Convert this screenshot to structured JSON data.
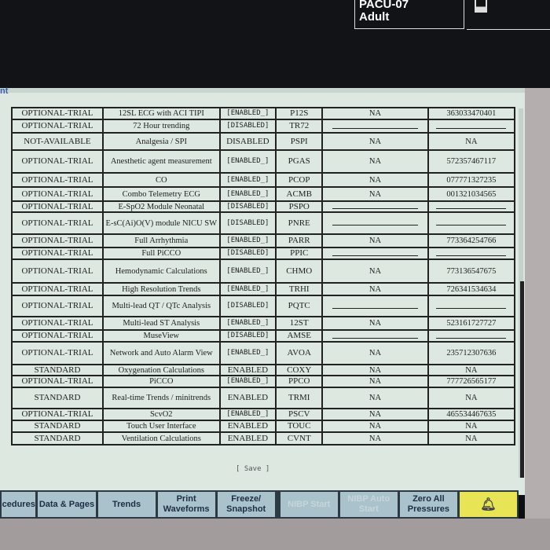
{
  "header": {
    "bed": "PACU-07",
    "patient_type": "Adult"
  },
  "side_text": "nt",
  "table": {
    "rows": [
      [
        "OPTIONAL-TRIAL",
        "12SL ECG with ACI TIPI",
        "[ENABLED_]",
        "P12S",
        "NA",
        "363033470401"
      ],
      [
        "OPTIONAL-TRIAL",
        "72 Hour trending",
        "[DISABLED]",
        "TR72",
        "",
        ""
      ],
      [
        "NOT-AVAILABLE",
        "Analgesia / SPI",
        "DISABLED",
        "PSPI",
        "NA",
        "NA"
      ],
      [
        "OPTIONAL-TRIAL",
        "Anesthetic agent measurement",
        "[ENABLED_]",
        "PGAS",
        "NA",
        "572357467117"
      ],
      [
        "OPTIONAL-TRIAL",
        "CO",
        "[ENABLED_]",
        "PCOP",
        "NA",
        "077771327235"
      ],
      [
        "OPTIONAL-TRIAL",
        "Combo Telemetry ECG",
        "[ENABLED_]",
        "ACMB",
        "NA",
        "001321034565"
      ],
      [
        "OPTIONAL-TRIAL",
        "E-SpO2 Module Neonatal",
        "[DISABLED]",
        "PSPO",
        "",
        ""
      ],
      [
        "OPTIONAL-TRIAL",
        "E-sC(Ai)O(V) module NICU SW",
        "[DISABLED]",
        "PNRE",
        "",
        ""
      ],
      [
        "OPTIONAL-TRIAL",
        "Full Arrhythmia",
        "[ENABLED_]",
        "PARR",
        "NA",
        "773364254766"
      ],
      [
        "OPTIONAL-TRIAL",
        "Full PiCCO",
        "[DISABLED]",
        "PPIC",
        "",
        ""
      ],
      [
        "OPTIONAL-TRIAL",
        "Hemodynamic Calculations",
        "[ENABLED_]",
        "CHMO",
        "NA",
        "773136547675"
      ],
      [
        "OPTIONAL-TRIAL",
        "High Resolution Trends",
        "[ENABLED_]",
        "TRHI",
        "NA",
        "726341534634"
      ],
      [
        "OPTIONAL-TRIAL",
        "Multi-lead QT / QTc Analysis",
        "[DISABLED]",
        "PQTC",
        "",
        ""
      ],
      [
        "OPTIONAL-TRIAL",
        "Multi-lead ST Analysis",
        "[ENABLED_]",
        "12ST",
        "NA",
        "523161727727"
      ],
      [
        "OPTIONAL-TRIAL",
        "MuseView",
        "[DISABLED]",
        "AMSE",
        "",
        ""
      ],
      [
        "OPTIONAL-TRIAL",
        "Network and Auto Alarm View",
        "[ENABLED_]",
        "AVOA",
        "NA",
        "235712307636"
      ],
      [
        "STANDARD",
        "Oxygenation Calculations",
        "ENABLED",
        "COXY",
        "NA",
        "NA"
      ],
      [
        "OPTIONAL-TRIAL",
        "PiCCO",
        "[ENABLED_]",
        "PPCO",
        "NA",
        "777726565177"
      ],
      [
        "STANDARD",
        "Real-time Trends / minitrends",
        "ENABLED",
        "TRMI",
        "NA",
        "NA"
      ],
      [
        "OPTIONAL-TRIAL",
        "ScvO2",
        "[ENABLED_]",
        "PSCV",
        "NA",
        "465534467635"
      ],
      [
        "STANDARD",
        "Touch User Interface",
        "ENABLED",
        "TOUC",
        "NA",
        "NA"
      ],
      [
        "STANDARD",
        "Ventilation Calculations",
        "ENABLED",
        "CVNT",
        "NA",
        "NA"
      ]
    ]
  },
  "save_label": "[ Save ]",
  "buttons": [
    {
      "label": "cedures",
      "enabled": true
    },
    {
      "label": "Data & Pages",
      "enabled": true
    },
    {
      "label": "Trends",
      "enabled": true
    },
    {
      "label": "Print Waveforms",
      "enabled": true
    },
    {
      "label": "Freeze/ Snapshot",
      "enabled": true
    },
    {
      "label": "NIBP Start",
      "enabled": false
    },
    {
      "label": "NIBP Auto Start",
      "enabled": false
    },
    {
      "label": "Zero All Pressures",
      "enabled": true
    }
  ],
  "alarm_icon": "bell-icon",
  "colors": {
    "screen_bg": "#dde8e1",
    "button": "#a9c2cc",
    "alarm_button": "#e7e455"
  }
}
